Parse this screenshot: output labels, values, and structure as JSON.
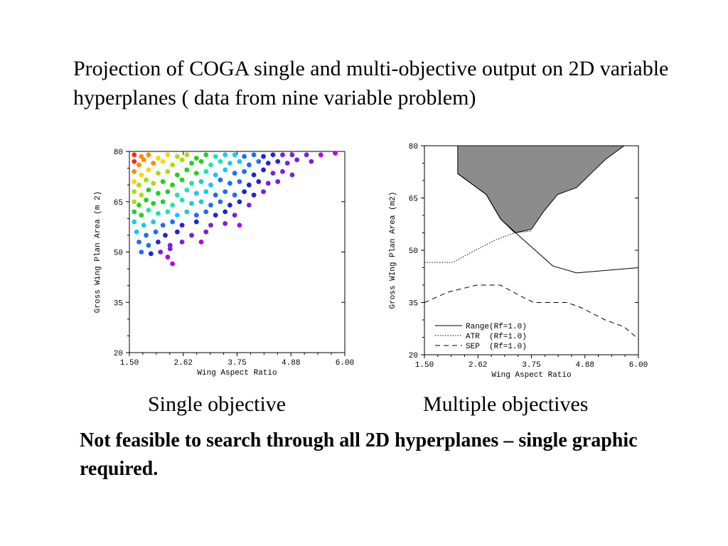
{
  "slide": {
    "title": "Projection of COGA single and multi-objective output on 2D variable hyperplanes ( data from nine variable problem)",
    "caption_left": "Single objective",
    "caption_right": "Multiple objectives",
    "conclusion": "Not feasible to search through all 2D hyperplanes – single graphic required."
  },
  "chart_data": [
    {
      "type": "scatter",
      "title": "",
      "xlabel": "Wing Aspect Ratio",
      "ylabel": "Gross Wing Plan Area (m 2)",
      "xlim": [
        1.5,
        6.0
      ],
      "ylim": [
        20,
        80
      ],
      "xticks": [
        "1.50",
        "2.62",
        "3.75",
        "4.88",
        "6.00"
      ],
      "yticks": [
        "20",
        "35",
        "50",
        "65",
        "80"
      ],
      "grid": false,
      "colormap": [
        "#ff2a00",
        "#ff8c00",
        "#ffd500",
        "#a8e000",
        "#1fd41f",
        "#19e6b4",
        "#14c8ff",
        "#1f6bff",
        "#2222dd",
        "#7a1fe0",
        "#b000ff"
      ],
      "points": [
        [
          1.6,
          79,
          0.05
        ],
        [
          1.75,
          78.5,
          0.1
        ],
        [
          1.9,
          79,
          0.15
        ],
        [
          2.1,
          78,
          0.2
        ],
        [
          2.3,
          79,
          0.25
        ],
        [
          2.5,
          78.5,
          0.3
        ],
        [
          2.7,
          79,
          0.35
        ],
        [
          2.9,
          78,
          0.4
        ],
        [
          3.1,
          79,
          0.45
        ],
        [
          3.3,
          78.5,
          0.5
        ],
        [
          3.5,
          79,
          0.55
        ],
        [
          3.7,
          79,
          0.6
        ],
        [
          3.9,
          78.5,
          0.65
        ],
        [
          4.1,
          79,
          0.7
        ],
        [
          4.3,
          78.5,
          0.75
        ],
        [
          4.5,
          79,
          0.8
        ],
        [
          4.7,
          79,
          0.82
        ],
        [
          4.9,
          79,
          0.85
        ],
        [
          5.2,
          79,
          0.88
        ],
        [
          5.5,
          79,
          0.92
        ],
        [
          5.8,
          79.5,
          0.96
        ],
        [
          1.6,
          77,
          0.08
        ],
        [
          1.7,
          76,
          0.12
        ],
        [
          1.8,
          77.5,
          0.1
        ],
        [
          2.0,
          76.5,
          0.18
        ],
        [
          2.2,
          77,
          0.22
        ],
        [
          2.4,
          76,
          0.28
        ],
        [
          2.6,
          77.5,
          0.32
        ],
        [
          2.8,
          76.5,
          0.38
        ],
        [
          3.0,
          77,
          0.42
        ],
        [
          3.2,
          76,
          0.48
        ],
        [
          3.4,
          77,
          0.52
        ],
        [
          3.6,
          76.5,
          0.58
        ],
        [
          3.8,
          77,
          0.62
        ],
        [
          4.0,
          76,
          0.68
        ],
        [
          4.2,
          77,
          0.72
        ],
        [
          4.4,
          76.5,
          0.76
        ],
        [
          4.6,
          77,
          0.8
        ],
        [
          4.8,
          76.5,
          0.84
        ],
        [
          5.0,
          77.5,
          0.86
        ],
        [
          5.3,
          77,
          0.9
        ],
        [
          1.6,
          74,
          0.15
        ],
        [
          1.75,
          73,
          0.2
        ],
        [
          1.9,
          74.5,
          0.25
        ],
        [
          2.1,
          73.5,
          0.3
        ],
        [
          2.3,
          74,
          0.35
        ],
        [
          2.5,
          73,
          0.4
        ],
        [
          2.7,
          74.5,
          0.42
        ],
        [
          2.9,
          73.5,
          0.45
        ],
        [
          3.1,
          74,
          0.5
        ],
        [
          3.3,
          73,
          0.55
        ],
        [
          3.5,
          74.5,
          0.6
        ],
        [
          3.7,
          73.5,
          0.65
        ],
        [
          3.9,
          74,
          0.7
        ],
        [
          4.1,
          73,
          0.74
        ],
        [
          4.3,
          74.5,
          0.78
        ],
        [
          4.5,
          73.5,
          0.82
        ],
        [
          4.7,
          74,
          0.86
        ],
        [
          4.9,
          73,
          0.88
        ],
        [
          1.6,
          71,
          0.25
        ],
        [
          1.7,
          70,
          0.3
        ],
        [
          1.85,
          71.5,
          0.33
        ],
        [
          2.0,
          70.5,
          0.36
        ],
        [
          2.2,
          71,
          0.4
        ],
        [
          2.4,
          70,
          0.42
        ],
        [
          2.6,
          71.5,
          0.45
        ],
        [
          2.8,
          70.5,
          0.5
        ],
        [
          3.0,
          71,
          0.55
        ],
        [
          3.2,
          70,
          0.6
        ],
        [
          3.4,
          71.5,
          0.64
        ],
        [
          3.6,
          70.5,
          0.68
        ],
        [
          3.8,
          71,
          0.72
        ],
        [
          4.0,
          70,
          0.76
        ],
        [
          4.2,
          71,
          0.8
        ],
        [
          4.4,
          70.5,
          0.84
        ],
        [
          4.6,
          71,
          0.88
        ],
        [
          1.6,
          68,
          0.3
        ],
        [
          1.75,
          67,
          0.35
        ],
        [
          1.9,
          68.5,
          0.38
        ],
        [
          2.1,
          67.5,
          0.4
        ],
        [
          2.3,
          68,
          0.43
        ],
        [
          2.5,
          67,
          0.46
        ],
        [
          2.7,
          68.5,
          0.5
        ],
        [
          2.9,
          67.5,
          0.55
        ],
        [
          3.1,
          68,
          0.6
        ],
        [
          3.3,
          67,
          0.64
        ],
        [
          3.5,
          68,
          0.68
        ],
        [
          3.7,
          67,
          0.72
        ],
        [
          3.9,
          68,
          0.76
        ],
        [
          4.1,
          67,
          0.8
        ],
        [
          4.3,
          68,
          0.86
        ],
        [
          1.6,
          65,
          0.35
        ],
        [
          1.7,
          64,
          0.38
        ],
        [
          1.85,
          65.5,
          0.4
        ],
        [
          2.0,
          64.5,
          0.42
        ],
        [
          2.2,
          65,
          0.45
        ],
        [
          2.4,
          64,
          0.48
        ],
        [
          2.6,
          65.5,
          0.52
        ],
        [
          2.8,
          64.5,
          0.56
        ],
        [
          3.0,
          65,
          0.62
        ],
        [
          3.2,
          64,
          0.66
        ],
        [
          3.4,
          65,
          0.7
        ],
        [
          3.6,
          64,
          0.75
        ],
        [
          3.8,
          65,
          0.8
        ],
        [
          4.0,
          64,
          0.85
        ],
        [
          1.6,
          62,
          0.4
        ],
        [
          1.75,
          61,
          0.44
        ],
        [
          1.9,
          62.5,
          0.46
        ],
        [
          2.1,
          61.5,
          0.5
        ],
        [
          2.3,
          62,
          0.54
        ],
        [
          2.5,
          61,
          0.58
        ],
        [
          2.7,
          62,
          0.62
        ],
        [
          2.9,
          61,
          0.66
        ],
        [
          3.1,
          62,
          0.7
        ],
        [
          3.3,
          61,
          0.74
        ],
        [
          3.5,
          62,
          0.8
        ],
        [
          3.7,
          61,
          0.85
        ],
        [
          1.6,
          59,
          0.55
        ],
        [
          1.8,
          58,
          0.58
        ],
        [
          2.0,
          59,
          0.62
        ],
        [
          2.2,
          58,
          0.66
        ],
        [
          2.4,
          59,
          0.7
        ],
        [
          2.6,
          58,
          0.74
        ],
        [
          2.9,
          59,
          0.78
        ],
        [
          3.2,
          58,
          0.82
        ],
        [
          3.5,
          58.5,
          0.88
        ],
        [
          3.8,
          58,
          0.92
        ],
        [
          1.65,
          56,
          0.6
        ],
        [
          1.85,
          55,
          0.65
        ],
        [
          2.05,
          56,
          0.7
        ],
        [
          2.25,
          55,
          0.74
        ],
        [
          2.5,
          56,
          0.78
        ],
        [
          2.8,
          55,
          0.84
        ],
        [
          3.1,
          56,
          0.9
        ],
        [
          1.7,
          53,
          0.68
        ],
        [
          1.9,
          52,
          0.72
        ],
        [
          2.1,
          53,
          0.78
        ],
        [
          2.35,
          52,
          0.82
        ],
        [
          2.6,
          53,
          0.88
        ],
        [
          3.0,
          53,
          0.94
        ],
        [
          1.75,
          50,
          0.72
        ],
        [
          1.95,
          49.5,
          0.78
        ],
        [
          2.15,
          50,
          0.84
        ],
        [
          2.35,
          51,
          0.9
        ],
        [
          2.3,
          48.5,
          0.94
        ],
        [
          2.4,
          46.5,
          0.98
        ]
      ]
    },
    {
      "type": "line",
      "title": "",
      "xlabel": "Wing Aspect Ratio",
      "ylabel": "Gross WIng Plan Area (m2)",
      "xlim": [
        1.5,
        6.0
      ],
      "ylim": [
        20,
        80
      ],
      "xticks": [
        "1.50",
        "2.62",
        "3.75",
        "4.88",
        "6.00"
      ],
      "yticks": [
        "20",
        "35",
        "50",
        "65",
        "80"
      ],
      "grid": false,
      "legend": "bottom-left",
      "series": [
        {
          "name": "Range(Rf=1.0)",
          "style": "solid",
          "x": [
            2.2,
            2.8,
            3.1,
            3.5,
            4.2,
            4.7,
            6.0
          ],
          "y": [
            72,
            66,
            59,
            54,
            45.5,
            43.5,
            45
          ]
        },
        {
          "name": "ATR  (Rf=1.0)",
          "style": "dotted",
          "x": [
            1.5,
            2.1,
            2.5,
            3.0,
            3.4,
            3.75
          ],
          "y": [
            46.5,
            46.5,
            49.5,
            53,
            55,
            55.5
          ]
        },
        {
          "name": "SEP  (Rf=1.0)",
          "style": "dashed",
          "x": [
            1.5,
            2.0,
            2.3,
            2.6,
            3.1,
            3.5,
            3.8,
            4.2,
            4.5,
            4.8,
            5.3,
            5.7,
            6.0
          ],
          "y": [
            35,
            38,
            39,
            40,
            40,
            37,
            35,
            35,
            35,
            33.5,
            30,
            28,
            24.5
          ]
        }
      ],
      "shaded_region": {
        "color": "#8c8c8c",
        "x": [
          2.2,
          5.7,
          5.7,
          5.3,
          5.0,
          4.7,
          4.5,
          4.3,
          4.0,
          3.75,
          3.4,
          3.1,
          2.8,
          2.2
        ],
        "y": [
          80,
          80,
          80,
          76,
          72,
          68,
          67,
          66,
          61,
          56,
          55,
          59,
          66,
          72
        ]
      }
    }
  ]
}
